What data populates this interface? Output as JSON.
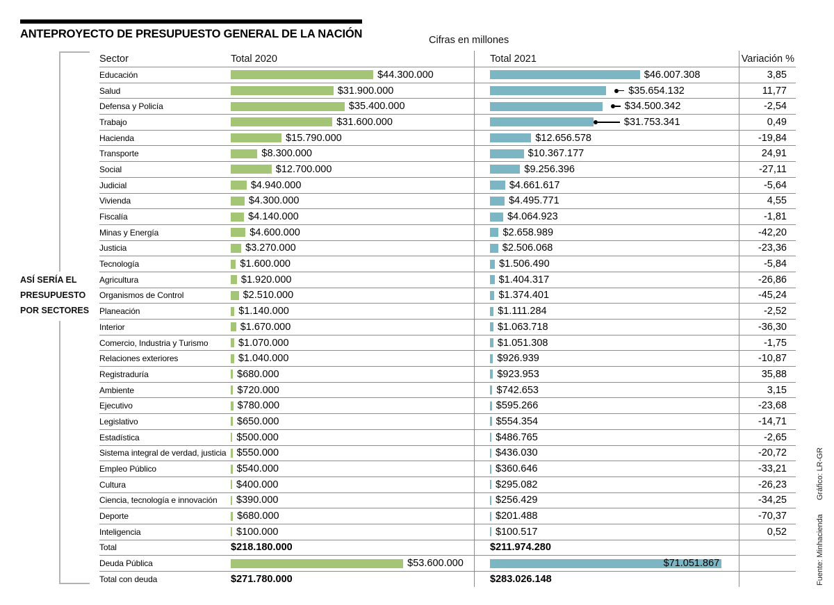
{
  "header": {
    "title": "ANTEPROYECTO DE PRESUPUESTO GENERAL DE LA NACIÓN",
    "units_note": "Cifras en millones"
  },
  "side_label": {
    "lines": [
      "ASÍ SERÍA EL",
      "PRESUPUESTO",
      "POR SECTORES"
    ]
  },
  "credits": {
    "source": "Fuente: Minhacienda",
    "graphic": "Gráfico: LR-GR"
  },
  "columns": {
    "sector": "Sector",
    "total_2020": "Total 2020",
    "total_2021": "Total 2021",
    "variation": "Variación %"
  },
  "colors": {
    "bar_2020": "#a4c476",
    "bar_2021": "#7cb5c4"
  },
  "chart_data": {
    "type": "bar",
    "title": "ANTEPROYECTO DE PRESUPUESTO GENERAL DE LA NACIÓN",
    "units": "Cifras en millones",
    "series": [
      {
        "name": "Total 2020"
      },
      {
        "name": "Total 2021"
      }
    ],
    "rows": [
      {
        "kind": "sector",
        "sector": "Educación",
        "v2020": 44300000,
        "label_2020": "$44.300.000",
        "v2021": 46007308,
        "label_2021": "$46.007.308",
        "variation": "3,85"
      },
      {
        "kind": "sector",
        "sector": "Salud",
        "v2020": 31900000,
        "label_2020": "$31.900.000",
        "v2021": 35654132,
        "label_2021": "$35.654.132",
        "variation": "11,77",
        "callout": "short"
      },
      {
        "kind": "sector",
        "sector": "Defensa y Policía",
        "v2020": 35400000,
        "label_2020": "$35.400.000",
        "v2021": 34500342,
        "label_2021": "$34.500.342",
        "variation": "-2,54",
        "callout": "short"
      },
      {
        "kind": "sector",
        "sector": "Trabajo",
        "v2020": 31600000,
        "label_2020": "$31.600.000",
        "v2021": 31753341,
        "label_2021": "$31.753.341",
        "variation": "0,49",
        "callout": "long"
      },
      {
        "kind": "sector",
        "sector": "Hacienda",
        "v2020": 15790000,
        "label_2020": "$15.790.000",
        "v2021": 12656578,
        "label_2021": "$12.656.578",
        "variation": "-19,84"
      },
      {
        "kind": "sector",
        "sector": "Transporte",
        "v2020": 8300000,
        "label_2020": "$8.300.000",
        "v2021": 10367177,
        "label_2021": "$10.367.177",
        "variation": "24,91"
      },
      {
        "kind": "sector",
        "sector": "Social",
        "v2020": 12700000,
        "label_2020": "$12.700.000",
        "v2021": 9256396,
        "label_2021": "$9.256.396",
        "variation": "-27,11"
      },
      {
        "kind": "sector",
        "sector": "Judicial",
        "v2020": 4940000,
        "label_2020": "$4.940.000",
        "v2021": 4661617,
        "label_2021": "$4.661.617",
        "variation": "-5,64"
      },
      {
        "kind": "sector",
        "sector": "Vivienda",
        "v2020": 4300000,
        "label_2020": "$4.300.000",
        "v2021": 4495771,
        "label_2021": "$4.495.771",
        "variation": "4,55"
      },
      {
        "kind": "sector",
        "sector": "Fiscalía",
        "v2020": 4140000,
        "label_2020": "$4.140.000",
        "v2021": 4064923,
        "label_2021": "$4.064.923",
        "variation": "-1,81"
      },
      {
        "kind": "sector",
        "sector": "Minas y Energía",
        "v2020": 4600000,
        "label_2020": "$4.600.000",
        "v2021": 2658989,
        "label_2021": "$2.658.989",
        "variation": "-42,20"
      },
      {
        "kind": "sector",
        "sector": "Justicia",
        "v2020": 3270000,
        "label_2020": "$3.270.000",
        "v2021": 2506068,
        "label_2021": "$2.506.068",
        "variation": "-23,36"
      },
      {
        "kind": "sector",
        "sector": "Tecnología",
        "v2020": 1600000,
        "label_2020": "$1.600.000",
        "v2021": 1506490,
        "label_2021": "$1.506.490",
        "variation": "-5,84"
      },
      {
        "kind": "sector",
        "sector": "Agricultura",
        "v2020": 1920000,
        "label_2020": "$1.920.000",
        "v2021": 1404317,
        "label_2021": "$1.404.317",
        "variation": "-26,86"
      },
      {
        "kind": "sector",
        "sector": "Organismos de Control",
        "v2020": 2510000,
        "label_2020": "$2.510.000",
        "v2021": 1374401,
        "label_2021": "$1.374.401",
        "variation": "-45,24"
      },
      {
        "kind": "sector",
        "sector": "Planeación",
        "v2020": 1140000,
        "label_2020": "$1.140.000",
        "v2021": 1111284,
        "label_2021": "$1.111.284",
        "variation": "-2,52"
      },
      {
        "kind": "sector",
        "sector": "Interior",
        "v2020": 1670000,
        "label_2020": "$1.670.000",
        "v2021": 1063718,
        "label_2021": "$1.063.718",
        "variation": "-36,30"
      },
      {
        "kind": "sector",
        "sector": "Comercio, Industria y Turismo",
        "v2020": 1070000,
        "label_2020": "$1.070.000",
        "v2021": 1051308,
        "label_2021": "$1.051.308",
        "variation": "-1,75"
      },
      {
        "kind": "sector",
        "sector": "Relaciones exteriores",
        "v2020": 1040000,
        "label_2020": "$1.040.000",
        "v2021": 926939,
        "label_2021": "$926.939",
        "variation": "-10,87"
      },
      {
        "kind": "sector",
        "sector": "Registraduría",
        "v2020": 680000,
        "label_2020": "$680.000",
        "v2021": 923953,
        "label_2021": "$923.953",
        "variation": "35,88"
      },
      {
        "kind": "sector",
        "sector": "Ambiente",
        "v2020": 720000,
        "label_2020": "$720.000",
        "v2021": 742653,
        "label_2021": "$742.653",
        "variation": "3,15"
      },
      {
        "kind": "sector",
        "sector": "Ejecutivo",
        "v2020": 780000,
        "label_2020": "$780.000",
        "v2021": 595266,
        "label_2021": "$595.266",
        "variation": "-23,68"
      },
      {
        "kind": "sector",
        "sector": "Legislativo",
        "v2020": 650000,
        "label_2020": "$650.000",
        "v2021": 554354,
        "label_2021": "$554.354",
        "variation": "-14,71"
      },
      {
        "kind": "sector",
        "sector": "Estadística",
        "v2020": 500000,
        "label_2020": "$500.000",
        "v2021": 486765,
        "label_2021": "$486.765",
        "variation": "-2,65"
      },
      {
        "kind": "sector",
        "sector": "Sistema integral de verdad, justicia",
        "v2020": 550000,
        "label_2020": "$550.000",
        "v2021": 436030,
        "label_2021": "$436.030",
        "variation": "-20,72"
      },
      {
        "kind": "sector",
        "sector": "Empleo Público",
        "v2020": 540000,
        "label_2020": "$540.000",
        "v2021": 360646,
        "label_2021": "$360.646",
        "variation": "-33,21"
      },
      {
        "kind": "sector",
        "sector": "Cultura",
        "v2020": 400000,
        "label_2020": "$400.000",
        "v2021": 295082,
        "label_2021": "$295.082",
        "variation": "-26,23"
      },
      {
        "kind": "sector",
        "sector": "Ciencia, tecnología e innovación",
        "v2020": 390000,
        "label_2020": "$390.000",
        "v2021": 256429,
        "label_2021": "$256.429",
        "variation": "-34,25"
      },
      {
        "kind": "sector",
        "sector": "Deporte",
        "v2020": 680000,
        "label_2020": "$680.000",
        "v2021": 201488,
        "label_2021": "$201.488",
        "variation": "-70,37"
      },
      {
        "kind": "sector",
        "sector": "Inteligencia",
        "v2020": 100000,
        "label_2020": "$100.000",
        "v2021": 100517,
        "label_2021": "$100.517",
        "variation": "0,52"
      },
      {
        "kind": "total",
        "sector": "Total",
        "label_2020": "$218.180.000",
        "label_2021": "$211.974.280",
        "variation": ""
      },
      {
        "kind": "debt",
        "sector": "Deuda Pública",
        "v2020": 53600000,
        "label_2020": "$53.600.000",
        "v2021": 71051867,
        "label_2021": "$71.051.867",
        "variation": ""
      },
      {
        "kind": "total",
        "sector": "Total con deuda",
        "label_2020": "$271.780.000",
        "label_2021": "$283.026.148",
        "variation": ""
      }
    ]
  }
}
